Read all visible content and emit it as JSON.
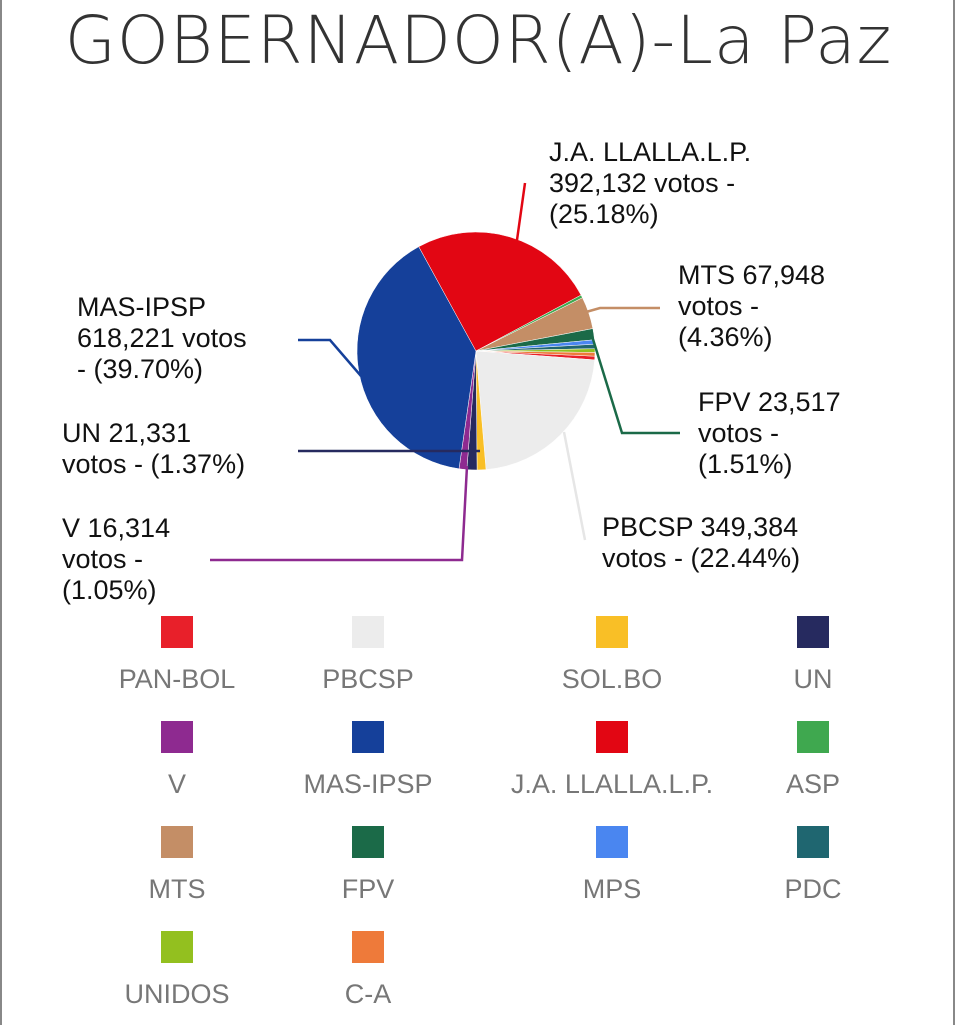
{
  "chart_data": {
    "type": "pie",
    "title": "GOBERNADOR(A)-La Paz",
    "slices": [
      {
        "name": "PAN-BOL",
        "percent": 0.5,
        "color": "#e8202a"
      },
      {
        "name": "PBCSP",
        "percent": 22.44,
        "votes": "349,384",
        "color": "#ececec"
      },
      {
        "name": "SOL.BO",
        "percent": 1.2,
        "color": "#f9bf26"
      },
      {
        "name": "UN",
        "percent": 1.37,
        "votes": "21,331",
        "color": "#262a5f"
      },
      {
        "name": "V",
        "percent": 1.05,
        "votes": "16,314",
        "color": "#8e2a90"
      },
      {
        "name": "MAS-IPSP",
        "percent": 39.7,
        "votes": "618,221",
        "color": "#15409a"
      },
      {
        "name": "J.A. LLALLA.L.P.",
        "percent": 25.18,
        "votes": "392,132",
        "color": "#e20613"
      },
      {
        "name": "ASP",
        "percent": 0.4,
        "color": "#3fa84f"
      },
      {
        "name": "MTS",
        "percent": 4.36,
        "votes": "67,948",
        "color": "#c48e66"
      },
      {
        "name": "FPV",
        "percent": 1.51,
        "votes": "23,517",
        "color": "#1b6a48"
      },
      {
        "name": "MPS",
        "percent": 0.6,
        "color": "#4a86f0"
      },
      {
        "name": "PDC",
        "percent": 0.6,
        "color": "#1f6670"
      },
      {
        "name": "UNIDOS",
        "percent": 0.5,
        "color": "#93c01f"
      },
      {
        "name": "C-A",
        "percent": 0.5,
        "color": "#ee7a3a"
      }
    ],
    "labels": {
      "ja": [
        "J.A. LLALLA.L.P.",
        "392,132 votos -",
        "(25.18%)"
      ],
      "mts": [
        "MTS 67,948",
        "votos -",
        "(4.36%)"
      ],
      "fpv": [
        "FPV 23,517",
        "votos -",
        "(1.51%)"
      ],
      "pbcsp": [
        "PBCSP 349,384",
        "votos - (22.44%)"
      ],
      "mas": [
        "MAS-IPSP",
        "618,221 votos",
        "- (39.70%)"
      ],
      "un": [
        "UN 21,331",
        "votos - (1.37%)"
      ],
      "v": [
        "V 16,314",
        "votos -",
        "(1.05%)"
      ]
    },
    "legend_placement": "bottom"
  }
}
